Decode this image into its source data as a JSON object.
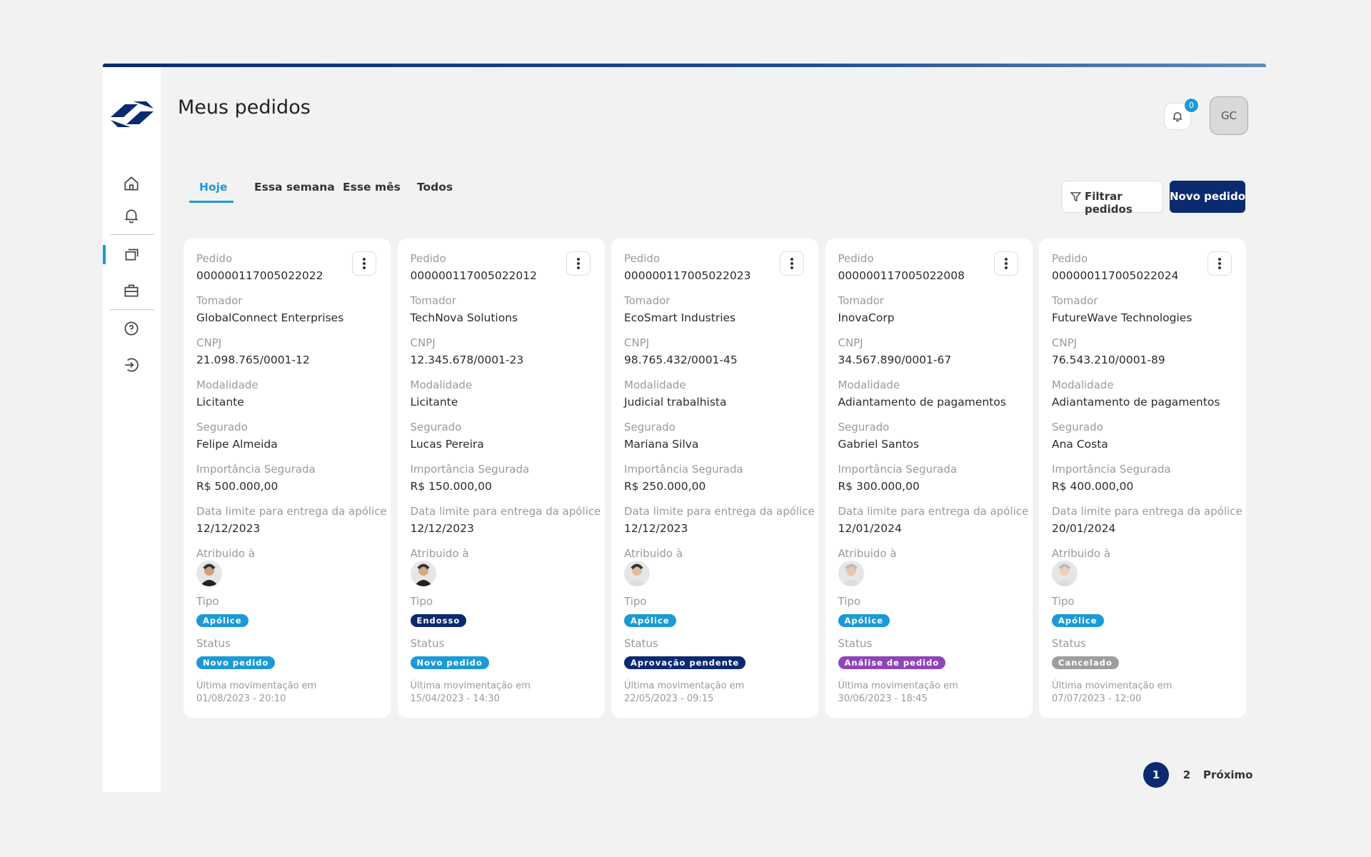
{
  "header": {
    "title": "Meus pedidos",
    "notifications": "0",
    "user_initials": "GC"
  },
  "tabs": [
    "Hoje",
    "Essa semana",
    "Esse mês",
    "Todos"
  ],
  "buttons": {
    "filter": "Filtrar pedidos",
    "new": "Novo pedido"
  },
  "labels": {
    "pedido": "Pedido",
    "tomador": "Tomador",
    "cnpj": "CNPJ",
    "modalidade": "Modalidade",
    "segurado": "Segurado",
    "importancia": "Importância Segurada",
    "data_limite": "Data limite para entrega da apólice",
    "atribuido": "Atribuido à",
    "tipo": "Tipo",
    "status": "Status",
    "ultima": "Última movimentação em"
  },
  "cards": [
    {
      "pedido": "000000117005022022",
      "tomador": "GlobalConnect Enterprises",
      "cnpj": "21.098.765/0001-12",
      "modalidade": "Licitante",
      "segurado": "Felipe Almeida",
      "importancia": "R$ 500.000,00",
      "data_limite": "12/12/2023",
      "tipo": {
        "text": "Apólice",
        "color": "#1b9ad6"
      },
      "status": {
        "text": "Novo pedido",
        "color": "#1b9ad6"
      },
      "ultima": "01/08/2023 - 20:10"
    },
    {
      "pedido": "000000117005022012",
      "tomador": "TechNova Solutions",
      "cnpj": "12.345.678/0001-23",
      "modalidade": "Licitante",
      "segurado": "Lucas Pereira",
      "importancia": "R$ 150.000,00",
      "data_limite": "12/12/2023",
      "tipo": {
        "text": "Endosso",
        "color": "#0b2a6f"
      },
      "status": {
        "text": "Novo pedido",
        "color": "#1b9ad6"
      },
      "ultima": "15/04/2023 - 14:30"
    },
    {
      "pedido": "000000117005022023",
      "tomador": "EcoSmart Industries",
      "cnpj": "98.765.432/0001-45",
      "modalidade": "Judicial trabalhista",
      "segurado": "Mariana Silva",
      "importancia": "R$ 250.000,00",
      "data_limite": "12/12/2023",
      "tipo": {
        "text": "Apólice",
        "color": "#1b9ad6"
      },
      "status": {
        "text": "Aprovação pendente",
        "color": "#0b2a6f"
      },
      "ultima": "22/05/2023 - 09:15"
    },
    {
      "pedido": "000000117005022008",
      "tomador": "InovaCorp",
      "cnpj": "34.567.890/0001-67",
      "modalidade": "Adiantamento de pagamentos",
      "segurado": "Gabriel Santos",
      "importancia": "R$ 300.000,00",
      "data_limite": "12/01/2024",
      "tipo": {
        "text": "Apólice",
        "color": "#1b9ad6"
      },
      "status": {
        "text": "Análise de pedido",
        "color": "#8d45b8"
      },
      "ultima": "30/06/2023 - 18:45"
    },
    {
      "pedido": "000000117005022024",
      "tomador": "FutureWave Technologies",
      "cnpj": "76.543.210/0001-89",
      "modalidade": "Adiantamento de pagamentos",
      "segurado": "Ana Costa",
      "importancia": "R$ 400.000,00",
      "data_limite": "20/01/2024",
      "tipo": {
        "text": "Apólice",
        "color": "#1b9ad6"
      },
      "status": {
        "text": "Cancelado",
        "color": "#9e9e9e"
      },
      "ultima": "07/07/2023 - 12:00"
    }
  ],
  "pagination": {
    "pages": [
      "1",
      "2"
    ],
    "next": "Próximo"
  }
}
